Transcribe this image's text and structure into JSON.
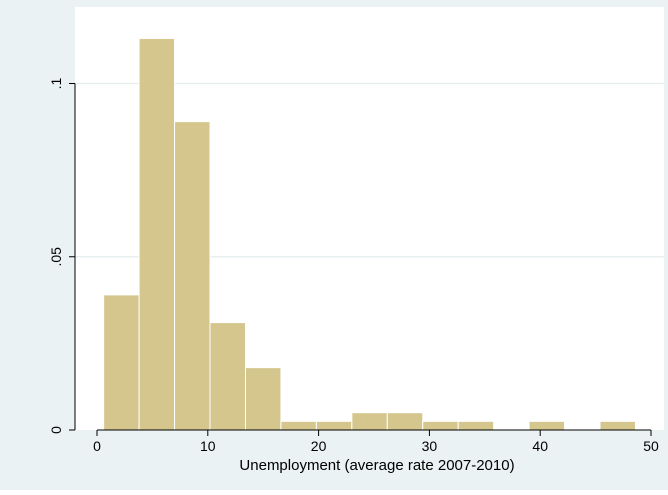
{
  "chart_data": {
    "type": "bar",
    "subtype": "histogram",
    "xlabel": "Unemployment (average rate 2007-2010)",
    "ylabel": "",
    "xlim": [
      0,
      50
    ],
    "ylim": [
      0,
      0.114
    ],
    "x_ticks": [
      0,
      10,
      20,
      30,
      40,
      50
    ],
    "x_tick_labels": [
      "0",
      "10",
      "20",
      "30",
      "40",
      "50"
    ],
    "y_ticks": [
      0,
      0.05,
      0.1
    ],
    "y_tick_labels": [
      "0",
      ".05",
      ".1"
    ],
    "grid": true,
    "grid_axis": "y",
    "legend": "none",
    "colors": {
      "outer_background": "#eaf2f3",
      "plot_background": "#ffffff",
      "bar_fill": "#d5c68e",
      "bar_stroke": "#ffffff",
      "grid": "#e9eff0",
      "axis": "#000000"
    },
    "bins": [
      {
        "x0": 0.6,
        "x1": 3.8,
        "value": 0.039
      },
      {
        "x0": 3.8,
        "x1": 7.0,
        "value": 0.113
      },
      {
        "x0": 7.0,
        "x1": 10.2,
        "value": 0.089
      },
      {
        "x0": 10.2,
        "x1": 13.4,
        "value": 0.031
      },
      {
        "x0": 13.4,
        "x1": 16.6,
        "value": 0.018
      },
      {
        "x0": 16.6,
        "x1": 19.8,
        "value": 0.0025
      },
      {
        "x0": 19.8,
        "x1": 23.0,
        "value": 0.0025
      },
      {
        "x0": 23.0,
        "x1": 26.2,
        "value": 0.005
      },
      {
        "x0": 26.2,
        "x1": 29.4,
        "value": 0.005
      },
      {
        "x0": 29.4,
        "x1": 32.6,
        "value": 0.0025
      },
      {
        "x0": 32.6,
        "x1": 35.8,
        "value": 0.0025
      },
      {
        "x0": 35.8,
        "x1": 39.0,
        "value": 0
      },
      {
        "x0": 39.0,
        "x1": 42.2,
        "value": 0.0025
      },
      {
        "x0": 42.2,
        "x1": 45.4,
        "value": 0
      },
      {
        "x0": 45.4,
        "x1": 48.6,
        "value": 0.0025
      }
    ]
  }
}
